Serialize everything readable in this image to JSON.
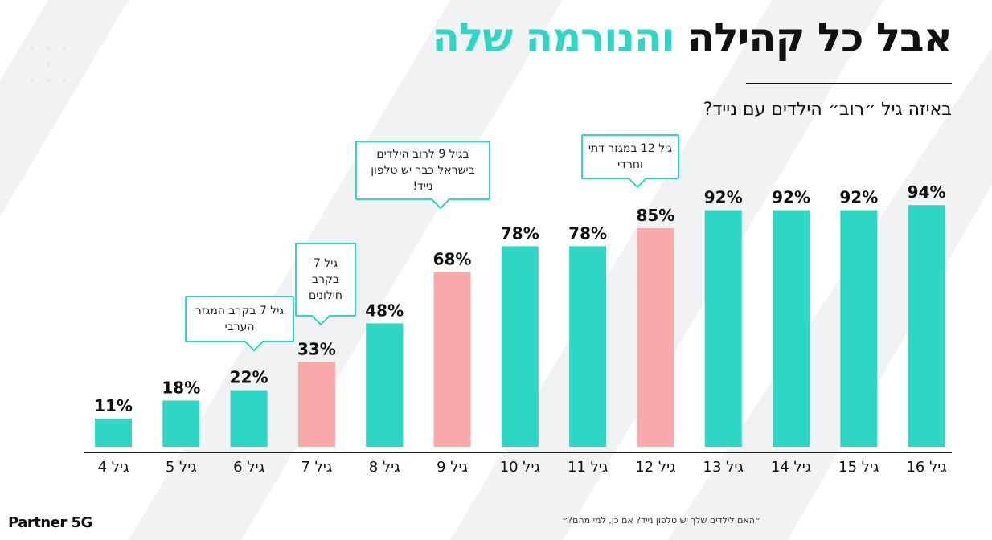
{
  "header": {
    "title_dark": "אבל כל קהילה",
    "title_highlight": "והנורמה שלה",
    "subtitle": "באיזה גיל ״רוב״ הילדים עם נייד?"
  },
  "chart_data": {
    "type": "bar",
    "categories": [
      "גיל 4",
      "גיל 5",
      "גיל 6",
      "גיל 7",
      "גיל 8",
      "גיל 9",
      "גיל 10",
      "גיל 11",
      "גיל 12",
      "גיל 13",
      "גיל 14",
      "גיל 15",
      "גיל 16"
    ],
    "values": [
      11,
      18,
      22,
      33,
      48,
      68,
      78,
      78,
      85,
      92,
      92,
      92,
      94
    ],
    "data_labels": [
      "11%",
      "18%",
      "22%",
      "33%",
      "48%",
      "68%",
      "78%",
      "78%",
      "85%",
      "92%",
      "92%",
      "92%",
      "94%"
    ],
    "highlighted": [
      3,
      5,
      8
    ],
    "unit": "%",
    "colors": {
      "bar": "#2ed6c4",
      "highlight": "#f8aaab"
    }
  },
  "callouts": [
    {
      "text": "גיל 7 בקרב המגזר הערבי"
    },
    {
      "text": "גיל 7 בקרב חילונים"
    },
    {
      "text": "בגיל 9 לרוב הילדים בישראל כבר יש טלפון נייד!"
    },
    {
      "text": "גיל 12 במגזר דתי וחרדי"
    }
  ],
  "footer": {
    "logo": "Partner 5G",
    "footnote": "״האם לילדים שלך יש טלפון נייד? אם כן, למי מהם?״"
  }
}
